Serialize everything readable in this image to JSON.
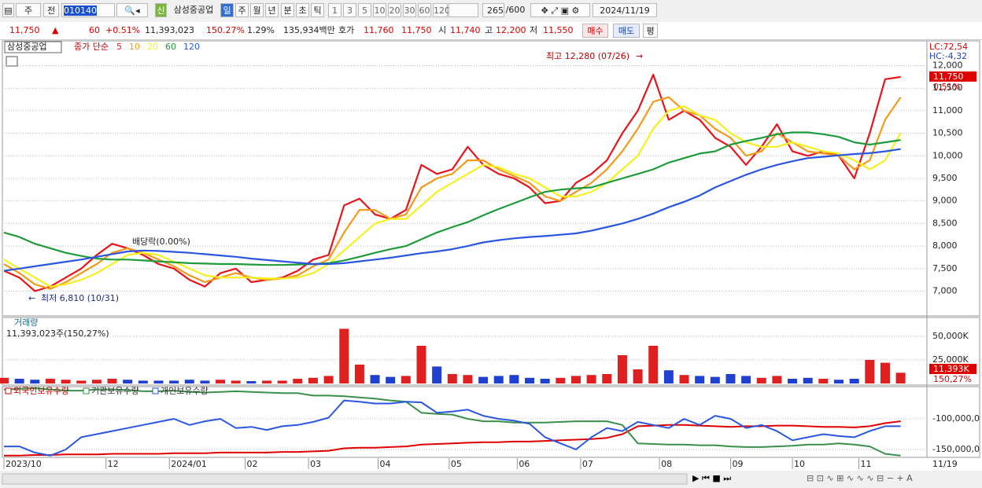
{
  "toolbar": {
    "period": "주",
    "scope": "전",
    "code": "010140",
    "new_badge": "신",
    "name": "삼성중공업",
    "intervals": [
      "일",
      "주",
      "월",
      "년",
      "분",
      "초",
      "틱"
    ],
    "counts": [
      "1",
      "3",
      "5",
      "10",
      "20",
      "30",
      "60",
      "120"
    ],
    "visible": "265",
    "total": "/600",
    "date": "2024/11/19"
  },
  "info_bar": {
    "price": "11,750",
    "change": "60",
    "change_rate": "+0.51%",
    "volume": "11,393,023",
    "volume_rate": "150.27%",
    "turnover": "1.29%",
    "amount": "135,934백만",
    "quote_label": "호가",
    "ask": "11,760",
    "bid": "11,750",
    "open_label": "시",
    "open": "11,740",
    "high_label": "고",
    "high": "12,200",
    "low_label": "저",
    "low": "11,550",
    "buy": "매수",
    "sell": "매도",
    "avg": "평"
  },
  "chart_data": [
    {
      "type": "line",
      "title": "삼성중공업",
      "legend_prefix": "종가 단순",
      "x": [
        0,
        1,
        2,
        3,
        4,
        5,
        6,
        7,
        8,
        9,
        10,
        11,
        12,
        13,
        14,
        15,
        16,
        17,
        18,
        19,
        20,
        21,
        22,
        23,
        24,
        25,
        26,
        27,
        28,
        29,
        30,
        31,
        32,
        33,
        34,
        35,
        36,
        37,
        38,
        39,
        40,
        41,
        42,
        43,
        44,
        45,
        46,
        47,
        48,
        49,
        50,
        51,
        52,
        53,
        54,
        55,
        56,
        57,
        58
      ],
      "xlim": [
        0,
        59.7
      ],
      "ylim": [
        6450,
        12550
      ],
      "yticks": [
        {
          "value": 7000,
          "label": "7,000"
        },
        {
          "value": 7500,
          "label": "7,500"
        },
        {
          "value": 8000,
          "label": "8,000"
        },
        {
          "value": 8500,
          "label": "8,500"
        },
        {
          "value": 9000,
          "label": "9,000"
        },
        {
          "value": 9500,
          "label": "9,500"
        },
        {
          "value": 10000,
          "label": "10,000"
        },
        {
          "value": 10500,
          "label": "10,500"
        },
        {
          "value": 11000,
          "label": "11,000"
        },
        {
          "value": 11500,
          "label": "11,500"
        },
        {
          "value": 12000,
          "label": "12,000"
        }
      ],
      "grid": true,
      "series": [
        {
          "name": "5",
          "color": "#e8141b",
          "values": [
            7450,
            7300,
            7000,
            7100,
            7300,
            7500,
            7800,
            8050,
            7950,
            7800,
            7600,
            7500,
            7250,
            7100,
            7400,
            7500,
            7200,
            7250,
            7300,
            7450,
            7700,
            7800,
            8900,
            9050,
            8700,
            8600,
            8800,
            9800,
            9600,
            9700,
            10200,
            9800,
            9600,
            9500,
            9300,
            8950,
            9000,
            9400,
            9600,
            9900,
            10500,
            11000,
            11800,
            10800,
            11000,
            10800,
            10400,
            10200,
            9800,
            10200,
            10700,
            10100,
            10000,
            10100,
            10000,
            9500,
            10500,
            11700,
            11750
          ]
        },
        {
          "name": "10",
          "color": "#f39a1b",
          "values": [
            7600,
            7400,
            7150,
            7050,
            7200,
            7400,
            7600,
            7850,
            7950,
            7850,
            7700,
            7550,
            7350,
            7200,
            7300,
            7400,
            7300,
            7250,
            7280,
            7350,
            7550,
            7700,
            8300,
            8800,
            8800,
            8600,
            8700,
            9300,
            9500,
            9600,
            9900,
            9900,
            9700,
            9550,
            9400,
            9100,
            9000,
            9200,
            9400,
            9700,
            10100,
            10600,
            11200,
            11300,
            11000,
            10900,
            10600,
            10400,
            10000,
            10100,
            10500,
            10300,
            10100,
            10050,
            10000,
            9700,
            9900,
            10800,
            11300
          ]
        },
        {
          "name": "20",
          "color": "#f5f01e",
          "values": [
            7700,
            7500,
            7300,
            7100,
            7150,
            7250,
            7400,
            7600,
            7800,
            7850,
            7800,
            7650,
            7500,
            7350,
            7300,
            7300,
            7300,
            7280,
            7280,
            7300,
            7400,
            7600,
            7900,
            8200,
            8500,
            8600,
            8600,
            8900,
            9200,
            9400,
            9600,
            9800,
            9750,
            9600,
            9500,
            9300,
            9100,
            9100,
            9200,
            9400,
            9700,
            10000,
            10600,
            11000,
            11100,
            10900,
            10800,
            10500,
            10300,
            10200,
            10200,
            10300,
            10200,
            10100,
            10050,
            9900,
            9700,
            9900,
            10500
          ]
        },
        {
          "name": "60",
          "color": "#1e9b3a",
          "values": [
            8300,
            8200,
            8050,
            7950,
            7850,
            7780,
            7720,
            7700,
            7700,
            7680,
            7660,
            7640,
            7620,
            7610,
            7600,
            7600,
            7590,
            7580,
            7580,
            7590,
            7600,
            7620,
            7680,
            7760,
            7850,
            7930,
            8000,
            8150,
            8300,
            8420,
            8530,
            8680,
            8820,
            8950,
            9080,
            9200,
            9250,
            9280,
            9300,
            9400,
            9500,
            9600,
            9700,
            9850,
            9950,
            10050,
            10100,
            10250,
            10330,
            10400,
            10480,
            10520,
            10520,
            10480,
            10420,
            10300,
            10250,
            10300,
            10350
          ]
        },
        {
          "name": "120",
          "color": "#2a56e0",
          "values": [
            7450,
            7500,
            7550,
            7600,
            7650,
            7700,
            7760,
            7820,
            7880,
            7900,
            7890,
            7870,
            7850,
            7820,
            7790,
            7760,
            7720,
            7690,
            7660,
            7630,
            7600,
            7600,
            7620,
            7660,
            7700,
            7740,
            7790,
            7840,
            7880,
            7930,
            8000,
            8080,
            8130,
            8170,
            8200,
            8220,
            8250,
            8280,
            8340,
            8420,
            8500,
            8600,
            8720,
            8860,
            8980,
            9120,
            9300,
            9440,
            9580,
            9700,
            9800,
            9880,
            9950,
            9980,
            10010,
            10040,
            10060,
            10100,
            10150
          ]
        }
      ],
      "annotations": [
        "최고 12,280 (07/26)",
        "최저 6,810 (10/31)",
        "배당락(0.00%)"
      ],
      "lc_label": "LC:72,54",
      "hc_label": "HC:-4,32",
      "last_label": "11,750",
      "last_change": "0,51%"
    },
    {
      "type": "bar",
      "title": "거래량",
      "subtitle": "11,393,023주(150,27%)",
      "x": [
        0,
        1,
        2,
        3,
        4,
        5,
        6,
        7,
        8,
        9,
        10,
        11,
        12,
        13,
        14,
        15,
        16,
        17,
        18,
        19,
        20,
        21,
        22,
        23,
        24,
        25,
        26,
        27,
        28,
        29,
        30,
        31,
        32,
        33,
        34,
        35,
        36,
        37,
        38,
        39,
        40,
        41,
        42,
        43,
        44,
        45,
        46,
        47,
        48,
        49,
        50,
        51,
        52,
        53,
        54,
        55,
        56,
        57,
        58
      ],
      "xlim": [
        0,
        59.7
      ],
      "ylim": [
        0,
        70000
      ],
      "yticks": [
        {
          "value": 25000,
          "label": "25,000K"
        },
        {
          "value": 50000,
          "label": "50,000K"
        }
      ],
      "up_color": "#e02020",
      "down_color": "#2040d0",
      "values": [
        6000,
        5000,
        4000,
        5000,
        4000,
        3000,
        4000,
        5000,
        4000,
        3000,
        3000,
        3000,
        4000,
        3000,
        4000,
        3000,
        2500,
        3000,
        3000,
        5000,
        6000,
        8000,
        58000,
        20000,
        9000,
        7000,
        8000,
        40000,
        18000,
        10000,
        9000,
        7000,
        8000,
        9000,
        6000,
        5000,
        6000,
        8000,
        9000,
        10000,
        30000,
        15000,
        40000,
        14000,
        9000,
        8000,
        7000,
        10000,
        8000,
        6000,
        8000,
        5000,
        6000,
        5000,
        4000,
        5000,
        25000,
        22000,
        11393
      ],
      "last_label": "11,393K",
      "last_change": "150,27%"
    },
    {
      "type": "line",
      "x": [
        0,
        1,
        2,
        3,
        4,
        5,
        6,
        7,
        8,
        9,
        10,
        11,
        12,
        13,
        14,
        15,
        16,
        17,
        18,
        19,
        20,
        21,
        22,
        23,
        24,
        25,
        26,
        27,
        28,
        29,
        30,
        31,
        32,
        33,
        34,
        35,
        36,
        37,
        38,
        39,
        40,
        41,
        42,
        43,
        44,
        45,
        46,
        47,
        48,
        49,
        50,
        51,
        52,
        53,
        54,
        55,
        56,
        57,
        58
      ],
      "xlim": [
        0,
        59.7
      ],
      "ylim": [
        -162800,
        -47400
      ],
      "yticks": [
        {
          "value": -100000,
          "label": "-100,000,0"
        },
        {
          "value": -150000,
          "label": "-150,000,0"
        }
      ],
      "xticks": [
        {
          "value": 0,
          "label": "2023/10"
        },
        {
          "value": 6.6,
          "label": "12"
        },
        {
          "value": 10.7,
          "label": "2024/01"
        },
        {
          "value": 15.6,
          "label": "02"
        },
        {
          "value": 19.7,
          "label": "03"
        },
        {
          "value": 24.2,
          "label": "04"
        },
        {
          "value": 28.8,
          "label": "05"
        },
        {
          "value": 33.2,
          "label": "06"
        },
        {
          "value": 37.3,
          "label": "07"
        },
        {
          "value": 42.4,
          "label": "08"
        },
        {
          "value": 47,
          "label": "09"
        },
        {
          "value": 51,
          "label": "10"
        },
        {
          "value": 55.3,
          "label": "11"
        }
      ],
      "x_end_label": "11/19",
      "series": [
        {
          "name": "외국인보유수량",
          "color": "#e00000",
          "values": [
            -160000,
            -160000,
            -159000,
            -159000,
            -158000,
            -158000,
            -158000,
            -157000,
            -157000,
            -157000,
            -157000,
            -156000,
            -156000,
            -156000,
            -155000,
            -155000,
            -155000,
            -155000,
            -154000,
            -154000,
            -153000,
            -152000,
            -148000,
            -147000,
            -147000,
            -146000,
            -145000,
            -142000,
            -141000,
            -140000,
            -139000,
            -138000,
            -138000,
            -137000,
            -137000,
            -136000,
            -135000,
            -134000,
            -133000,
            -131000,
            -125000,
            -112000,
            -111000,
            -110000,
            -110000,
            -111000,
            -112000,
            -113000,
            -112000,
            -112000,
            -111000,
            -111000,
            -112000,
            -113000,
            -113000,
            -114000,
            -112000,
            -107000,
            -104000
          ]
        },
        {
          "name": "기관보유수량",
          "color": "#3a8f4a",
          "values": [
            -52000,
            -51000,
            -50000,
            -52000,
            -54000,
            -54000,
            -52000,
            -52000,
            -53000,
            -55000,
            -55000,
            -54000,
            -56000,
            -57000,
            -56000,
            -55000,
            -56000,
            -57000,
            -58000,
            -58000,
            -62000,
            -62000,
            -63000,
            -65000,
            -67000,
            -70000,
            -72000,
            -90000,
            -92000,
            -93000,
            -100000,
            -104000,
            -104000,
            -106000,
            -106000,
            -106000,
            -105000,
            -104000,
            -104000,
            -104000,
            -110000,
            -140000,
            -141000,
            -142000,
            -142000,
            -143000,
            -143000,
            -145000,
            -146000,
            -146000,
            -145000,
            -144000,
            -142000,
            -142000,
            -140000,
            -142000,
            -145000,
            -157000,
            -160000
          ]
        },
        {
          "name": "개인보유수량",
          "color": "#2a56e0",
          "values": [
            -145000,
            -145000,
            -155000,
            -160000,
            -150000,
            -130000,
            -125000,
            -120000,
            -115000,
            -110000,
            -105000,
            -100000,
            -110000,
            -104000,
            -100000,
            -115000,
            -113000,
            -118000,
            -112000,
            -110000,
            -105000,
            -98000,
            -70000,
            -72000,
            -75000,
            -75000,
            -72000,
            -73000,
            -90000,
            -88000,
            -85000,
            -95000,
            -100000,
            -103000,
            -108000,
            -130000,
            -140000,
            -150000,
            -130000,
            -115000,
            -120000,
            -105000,
            -110000,
            -115000,
            -100000,
            -110000,
            -95000,
            -100000,
            -115000,
            -110000,
            -120000,
            -135000,
            -130000,
            -125000,
            -128000,
            -130000,
            -120000,
            -112000,
            -112000
          ]
        }
      ]
    }
  ]
}
